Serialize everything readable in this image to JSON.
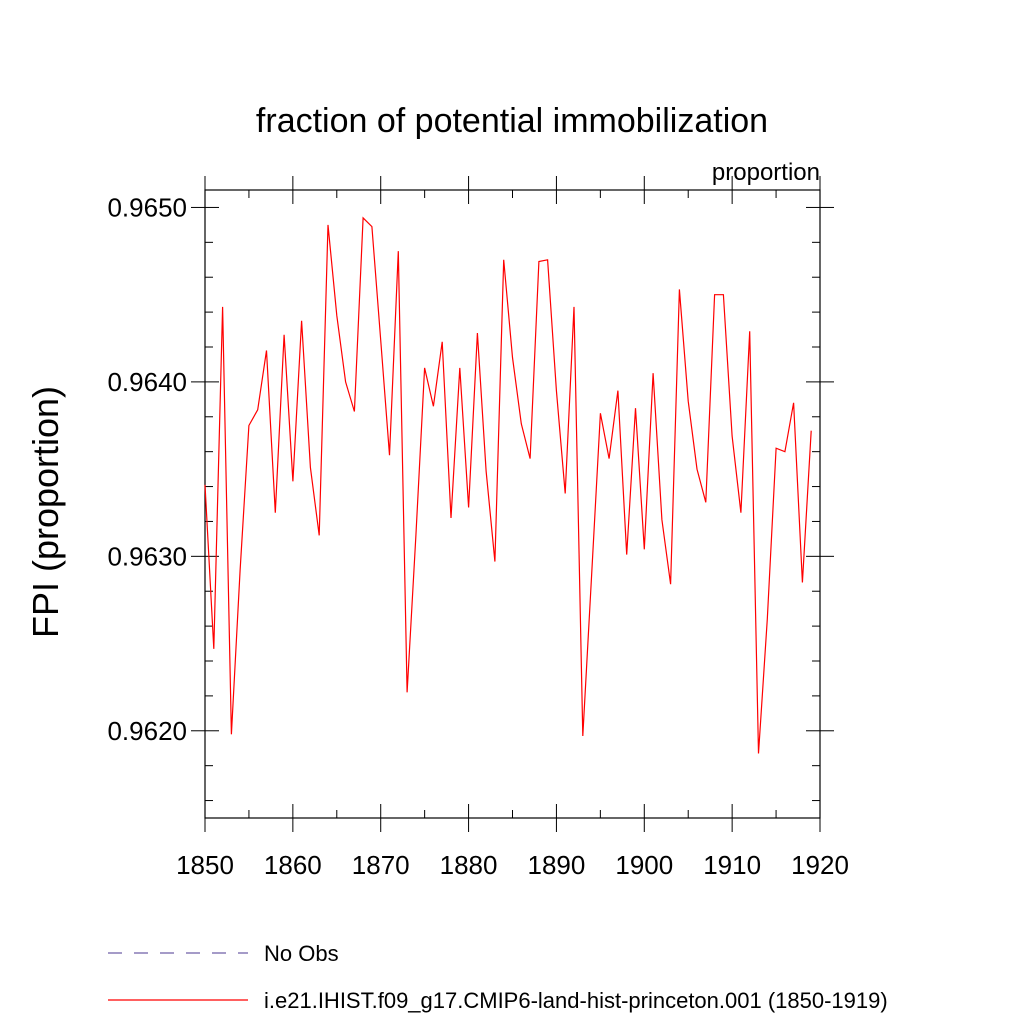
{
  "chart_data": {
    "type": "line",
    "title": "fraction of potential immobilization",
    "units_label": "proportion",
    "ylabel": "FPI  (proportion)",
    "xlabel": "",
    "xlim": [
      1850,
      1920
    ],
    "ylim": [
      0.9615,
      0.9651
    ],
    "x_ticks": [
      1850,
      1860,
      1870,
      1880,
      1890,
      1900,
      1910,
      1920
    ],
    "x_tick_labels": [
      "1850",
      "1860",
      "1870",
      "1880",
      "1890",
      "1900",
      "1910",
      "1920"
    ],
    "y_ticks": [
      0.962,
      0.963,
      0.964,
      0.965
    ],
    "y_tick_labels": [
      "0.9620",
      "0.9630",
      "0.9640",
      "0.9650"
    ],
    "grid": false,
    "legend_position": "bottom",
    "legend": [
      {
        "label": "No Obs",
        "color": "#6f5fa8",
        "style": "dashed"
      },
      {
        "label": "i.e21.IHIST.f09_g17.CMIP6-land-hist-princeton.001 (1850-1919)",
        "color": "#ff0000",
        "style": "solid"
      }
    ],
    "series": [
      {
        "name": "i.e21.IHIST.f09_g17.CMIP6-land-hist-princeton.001 (1850-1919)",
        "color": "#ff0000",
        "x": [
          1850,
          1851,
          1852,
          1853,
          1854,
          1855,
          1856,
          1857,
          1858,
          1859,
          1860,
          1861,
          1862,
          1863,
          1864,
          1865,
          1866,
          1867,
          1868,
          1869,
          1870,
          1871,
          1872,
          1873,
          1874,
          1875,
          1876,
          1877,
          1878,
          1879,
          1880,
          1881,
          1882,
          1883,
          1884,
          1885,
          1886,
          1887,
          1888,
          1889,
          1890,
          1891,
          1892,
          1893,
          1894,
          1895,
          1896,
          1897,
          1898,
          1899,
          1900,
          1901,
          1902,
          1903,
          1904,
          1905,
          1906,
          1907,
          1908,
          1909,
          1910,
          1911,
          1912,
          1913,
          1914,
          1915,
          1916,
          1917,
          1918,
          1919
        ],
        "y": [
          0.96341,
          0.96247,
          0.96443,
          0.96198,
          0.96292,
          0.96375,
          0.96384,
          0.96418,
          0.96325,
          0.96427,
          0.96343,
          0.96435,
          0.96351,
          0.96312,
          0.9649,
          0.96438,
          0.964,
          0.96383,
          0.96494,
          0.96489,
          0.96424,
          0.96358,
          0.96475,
          0.96222,
          0.96312,
          0.96408,
          0.96386,
          0.96423,
          0.96322,
          0.96408,
          0.96328,
          0.96428,
          0.96349,
          0.96297,
          0.9647,
          0.96414,
          0.96376,
          0.96356,
          0.96469,
          0.9647,
          0.96395,
          0.96336,
          0.96443,
          0.96197,
          0.96289,
          0.96382,
          0.96356,
          0.96395,
          0.96301,
          0.96385,
          0.96304,
          0.96405,
          0.96321,
          0.96284,
          0.96453,
          0.96389,
          0.9635,
          0.96331,
          0.9645,
          0.9645,
          0.96369,
          0.96325,
          0.96429,
          0.96187,
          0.96264,
          0.96362,
          0.9636,
          0.96388,
          0.96285,
          0.96372
        ]
      }
    ]
  }
}
